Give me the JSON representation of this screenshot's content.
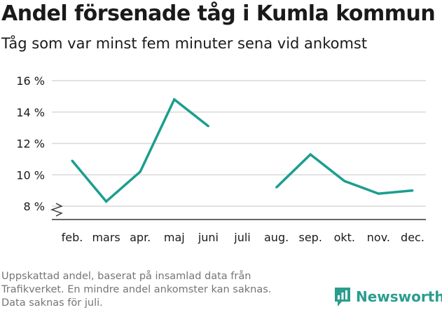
{
  "chart_data": {
    "type": "line",
    "title": "Andel försenade tåg i Kumla kommun",
    "subtitle": "Tåg som var minst fem minuter sena vid ankomst",
    "xlabel": "",
    "ylabel": "",
    "categories": [
      "feb.",
      "mars",
      "apr.",
      "maj",
      "juni",
      "juli",
      "aug.",
      "sep.",
      "okt.",
      "nov.",
      "dec."
    ],
    "series": [
      {
        "values": [
          10.9,
          8.3,
          10.2,
          14.8,
          13.1,
          null,
          9.2,
          11.3,
          9.6,
          8.8,
          9.0
        ]
      }
    ],
    "ylim": [
      8,
      16
    ],
    "yticks": [
      8,
      10,
      12,
      14,
      16
    ],
    "ytick_labels": [
      "8 %",
      "10 %",
      "12 %",
      "14 %",
      "16 %"
    ],
    "y_axis_break": true,
    "grid": true,
    "line_color": "#1b9e8f"
  },
  "footnote": [
    "Uppskattad andel, baserat på insamlad data från",
    "Trafikverket. En mindre andel ankomster kan saknas.",
    "Data saknas för juli."
  ],
  "brand": {
    "name": "Newsworthy",
    "icon": "newsworthy-logo-icon",
    "color": "#2a9d8f"
  }
}
